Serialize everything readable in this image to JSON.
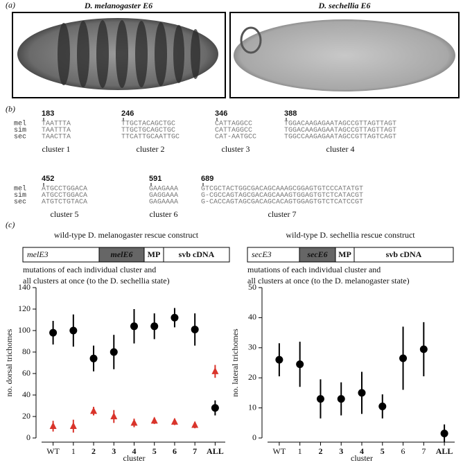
{
  "panel_a": {
    "label": "(a)",
    "images": [
      {
        "title": "D. melanogaster E6"
      },
      {
        "title": "D. sechellia E6"
      }
    ]
  },
  "panel_b": {
    "label": "(b)",
    "clusters": [
      {
        "name": "cluster 1",
        "position": 183,
        "rows": [
          {
            "species": "mel",
            "sequence": "TAATTTA"
          },
          {
            "species": "sim",
            "sequence": "TAATTTA"
          },
          {
            "species": "sec",
            "sequence": "TAACTTA"
          }
        ]
      },
      {
        "name": "cluster 2",
        "position": 246,
        "rows": [
          {
            "sequence": "TTGCTACAGCTGC"
          },
          {
            "sequence": "TTGCTGCAGCTGC"
          },
          {
            "sequence": "TTCATTGCAATTGC"
          }
        ]
      },
      {
        "name": "cluster 3",
        "position": 346,
        "rows": [
          {
            "sequence": "CATTAGGCC"
          },
          {
            "sequence": "CATTAGGCC"
          },
          {
            "sequence": "CAT-AATGCC"
          }
        ]
      },
      {
        "name": "cluster 4",
        "position": 388,
        "rows": [
          {
            "sequence": "TGGACAAGAGAATAGCCGTTAGTTAGT"
          },
          {
            "sequence": "TGGACAAGAGAATAGCCGTTAGTTAGT"
          },
          {
            "sequence": "TGGCCAAGAGAATAGCCGTTAGTCAGT"
          }
        ]
      },
      {
        "name": "cluster 5",
        "position": 452,
        "rows": [
          {
            "species": "mel",
            "sequence": "ATGCCTGGACA"
          },
          {
            "species": "sim",
            "sequence": "ATGCCTGGACA"
          },
          {
            "species": "sec",
            "sequence": "ATGTCTGTACA"
          }
        ]
      },
      {
        "name": "cluster 6",
        "position": 591,
        "rows": [
          {
            "sequence": "GAAGAAA"
          },
          {
            "sequence": "GAGGAAA"
          },
          {
            "sequence": "GAGAAAA"
          }
        ]
      },
      {
        "name": "cluster 7",
        "position": 689,
        "rows": [
          {
            "sequence": "GTCGCTACTGGCGACAGCAAAGCGGAGTGTCCCATATGT"
          },
          {
            "sequence": "G-CGCCAGTAGCGACAGCAAAGTGGAGTGTCTCATACGT"
          },
          {
            "sequence": "G-CACCAGTAGCGACAGCACAGTGGAGTGTCTCATCCGT"
          }
        ]
      }
    ]
  },
  "panel_c": {
    "label": "(c)",
    "constructs": [
      {
        "title": "wild-type D. melanogaster rescue construct",
        "parts": [
          "melE3",
          "melE6",
          "MP",
          "svb cDNA"
        ],
        "note": [
          "mutations of each individual cluster and",
          "all clusters at once (to the D. sechellia state)"
        ]
      },
      {
        "title": "wild-type D. sechellia rescue construct",
        "parts": [
          "secE3",
          "secE6",
          "MP",
          "svb cDNA"
        ],
        "note": [
          "mutations of each individual cluster and",
          "all clusters at once (to the  D. melanogaster state)"
        ]
      }
    ]
  },
  "chart_data": [
    {
      "type": "scatter",
      "x_label": "cluster",
      "y_label": "no. dorsal trichomes",
      "categories": [
        "WT",
        "1",
        "2",
        "3",
        "4",
        "5",
        "6",
        "7",
        "ALL"
      ],
      "bold_categories": [
        false,
        false,
        true,
        true,
        true,
        true,
        true,
        true,
        true
      ],
      "ylim": [
        0,
        140
      ],
      "yticks": [
        0,
        20,
        40,
        60,
        80,
        100,
        120,
        140
      ],
      "series": [
        {
          "marker": "circle",
          "color": "#000000",
          "values": [
            98,
            100,
            74,
            80,
            104,
            104,
            112,
            101,
            28
          ],
          "errors": [
            11,
            15,
            12,
            16,
            16,
            12,
            9,
            15,
            7
          ]
        },
        {
          "marker": "triangle",
          "color": "#d9342b",
          "values": [
            11,
            11,
            25,
            20,
            14,
            16,
            15,
            12,
            62
          ],
          "errors": [
            5,
            6,
            4,
            6,
            4,
            3,
            3,
            3,
            6
          ]
        }
      ]
    },
    {
      "type": "scatter",
      "x_label": "cluster",
      "y_label": "no. lateral trichomes",
      "categories": [
        "WT",
        "1",
        "2",
        "3",
        "4",
        "5",
        "6",
        "7",
        "ALL"
      ],
      "bold_categories": [
        false,
        false,
        true,
        true,
        true,
        true,
        false,
        false,
        true
      ],
      "ylim": [
        0,
        50
      ],
      "yticks": [
        0,
        10,
        20,
        30,
        40,
        50
      ],
      "series": [
        {
          "marker": "circle",
          "color": "#000000",
          "values": [
            26,
            24.5,
            13,
            13,
            15,
            10.5,
            26.5,
            29.5,
            1.5
          ],
          "errors": [
            5.5,
            7.5,
            6.5,
            5.5,
            7,
            4,
            10.5,
            9,
            3
          ]
        }
      ]
    }
  ]
}
